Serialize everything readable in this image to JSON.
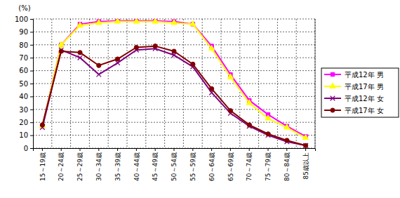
{
  "chart_data": {
    "type": "line",
    "y_label": "(%)",
    "categories": [
      "15～19歳",
      "20～24歳",
      "25～29歳",
      "30～34歳",
      "35～39歳",
      "40～44歳",
      "45～49歳",
      "50～54歳",
      "55～59歳",
      "60～64歳",
      "65～69歳",
      "70～74歳",
      "75～79歳",
      "80～84歳",
      "85歳以上"
    ],
    "series": [
      {
        "name": "平成12年 男",
        "color": "#ff00ff",
        "marker": "square",
        "values": [
          17,
          80,
          96,
          98,
          98.5,
          98.5,
          98.5,
          98,
          96,
          79,
          57,
          37,
          26,
          17,
          9
        ]
      },
      {
        "name": "平成17年 男",
        "color": "#ffff00",
        "marker": "triangle",
        "values": [
          17,
          80,
          95,
          97,
          98,
          98,
          98,
          97,
          96,
          77,
          55,
          35,
          23,
          16,
          8
        ]
      },
      {
        "name": "平成12年 女",
        "color": "#800080",
        "marker": "x",
        "values": [
          16,
          76,
          70,
          57,
          66,
          76,
          77,
          72,
          63,
          43,
          27,
          17,
          10,
          5,
          2
        ]
      },
      {
        "name": "平成17年 女",
        "color": "#800000",
        "marker": "circle",
        "values": [
          18,
          75,
          74,
          64,
          69,
          78,
          79,
          75,
          65,
          46,
          29,
          18,
          11,
          6,
          2
        ]
      }
    ],
    "ylim": [
      0,
      100
    ],
    "yticks": [
      0,
      10,
      20,
      30,
      40,
      50,
      60,
      70,
      80,
      90,
      100
    ],
    "grid": true,
    "legend": "right"
  }
}
